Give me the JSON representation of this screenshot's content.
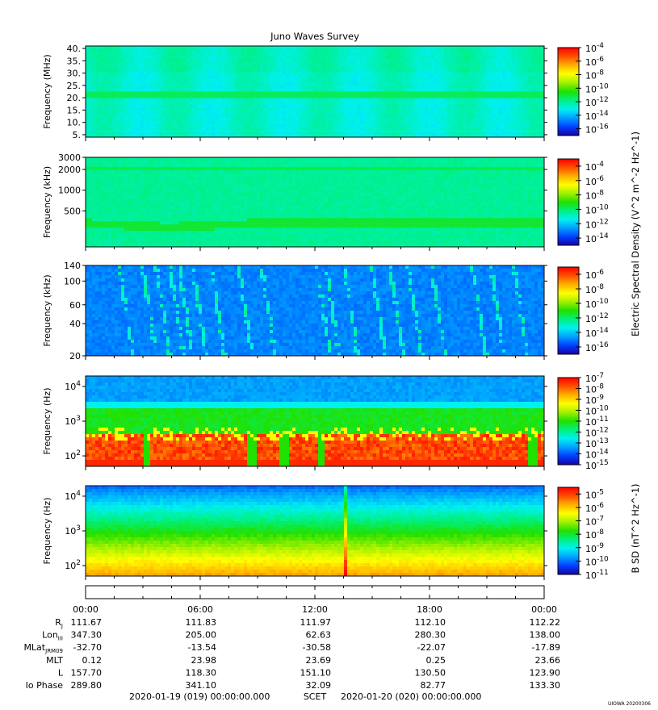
{
  "title": "Juno Waves Survey",
  "watermark": "UIOWA 20200306",
  "colorscale": [
    "#1a00a8",
    "#0040ff",
    "#00a0ff",
    "#00f0f0",
    "#00f080",
    "#20e000",
    "#a0f000",
    "#ffff00",
    "#ffb000",
    "#ff5000",
    "#ff0000"
  ],
  "chart_data": [
    {
      "type": "heatmap",
      "ylabel": "Frequency (MHz)",
      "yscale": "linear",
      "ylim": [
        4,
        41
      ],
      "yticks": [
        "5.",
        "10.",
        "15.",
        "20.",
        "25.",
        "30.",
        "35.",
        "40."
      ],
      "ytick_values": [
        5,
        10,
        15,
        20,
        25,
        30,
        35,
        40
      ],
      "colorbar_ticks": [
        "10^-4",
        "10^-6",
        "10^-8",
        "10^-10",
        "10^-12",
        "10^-14",
        "10^-16"
      ],
      "colorbar_exp": [
        -4,
        -6,
        -8,
        -10,
        -12,
        -14,
        -16
      ],
      "colorbar_range": [
        -17,
        -4
      ],
      "features": "uniform background ~1e-12 to 1e-13 V2 m-2 Hz-1; narrow band at ~21 MHz ~1e-11"
    },
    {
      "type": "heatmap",
      "ylabel": "Frequency (kHz)",
      "yscale": "log",
      "ylim": [
        150,
        3000
      ],
      "yticks": [
        "3000",
        "2000",
        "1000",
        "500"
      ],
      "ytick_values": [
        3000,
        2000,
        1000,
        500
      ],
      "colorbar_ticks": [
        "10^-4",
        "10^-6",
        "10^-8",
        "10^-10",
        "10^-12",
        "10^-14"
      ],
      "colorbar_exp": [
        -4,
        -6,
        -8,
        -10,
        -12,
        -14
      ],
      "colorbar_range": [
        -15,
        -3
      ],
      "colorbar_label": "Electric Spectral Density (V^2 m^-2 Hz^-1)",
      "features": "background ~1e-11; bands near 2000 kHz and ~350 kHz ~1e-10"
    },
    {
      "type": "heatmap",
      "ylabel": "Frequency (kHz)",
      "yscale": "log",
      "ylim": [
        20,
        140
      ],
      "yticks": [
        "140",
        "100",
        "60",
        "40",
        "20"
      ],
      "ytick_values": [
        140,
        100,
        60,
        40,
        20
      ],
      "colorbar_ticks": [
        "10^-6",
        "10^-8",
        "10^-10",
        "10^-12",
        "10^-14",
        "10^-16"
      ],
      "colorbar_exp": [
        -6,
        -8,
        -10,
        -12,
        -14,
        -16
      ],
      "colorbar_range": [
        -17,
        -5
      ],
      "features": "background ~1e-14 to 1e-15; sporadic drifting emission streaks ~1e-13"
    },
    {
      "type": "heatmap",
      "ylabel": "Frequency (Hz)",
      "yscale": "log",
      "ylim": [
        50,
        20000
      ],
      "yticks": [
        "10^4",
        "10^3",
        "10^2"
      ],
      "ytick_values": [
        10000,
        1000,
        100
      ],
      "colorbar_ticks": [
        "10^-7",
        "10^-8",
        "10^-9",
        "10^-10",
        "10^-11",
        "10^-12",
        "10^-13",
        "10^-14",
        "10^-15"
      ],
      "colorbar_exp": [
        -7,
        -8,
        -9,
        -10,
        -11,
        -12,
        -13,
        -14,
        -15
      ],
      "colorbar_range": [
        -15,
        -7
      ],
      "features": "intense emission below ~300 Hz ~1e-8 to 1e-7 with gaps; ~1e-11 up to ~3 kHz; ~1e-14 above 4 kHz"
    },
    {
      "type": "heatmap",
      "ylabel": "Frequency (Hz)",
      "yscale": "log",
      "ylim": [
        50,
        20000
      ],
      "yticks": [
        "10^4",
        "10^3",
        "10^2"
      ],
      "ytick_values": [
        10000,
        1000,
        100
      ],
      "colorbar_ticks": [
        "10^-5",
        "10^-6",
        "10^-7",
        "10^-8",
        "10^-9",
        "10^-10",
        "10^-11"
      ],
      "colorbar_exp": [
        -5,
        -6,
        -7,
        -8,
        -9,
        -10,
        -11
      ],
      "colorbar_range": [
        -11,
        -4.5
      ],
      "colorbar_label": "B SD (nT^2 Hz^-1)",
      "features": "magnetic spectral density ~1e-7 to 1e-6 below 200 Hz, decreasing to ~1e-10 above 5 kHz; vertical spike near 13:30"
    }
  ],
  "x_axis": {
    "ticks": [
      "00:00",
      "06:00",
      "12:00",
      "18:00",
      "00:00"
    ],
    "rows": [
      {
        "label": "R",
        "sub": "J",
        "values": [
          "111.67",
          "111.83",
          "111.97",
          "112.10",
          "112.22"
        ]
      },
      {
        "label": "Lon",
        "sub": "III",
        "values": [
          "347.30",
          "205.00",
          "62.63",
          "280.30",
          "138.00"
        ]
      },
      {
        "label": "MLat",
        "sub": "JRM09",
        "values": [
          "-32.70",
          "-13.54",
          "-30.58",
          "-22.07",
          "-17.89"
        ]
      },
      {
        "label": "MLT",
        "sub": "",
        "values": [
          "0.12",
          "23.98",
          "23.69",
          "0.25",
          "23.66"
        ]
      },
      {
        "label": "L",
        "sub": "",
        "values": [
          "157.70",
          "118.30",
          "151.10",
          "130.50",
          "123.90"
        ]
      },
      {
        "label": "Io Phase",
        "sub": "",
        "values": [
          "289.80",
          "341.10",
          "32.09",
          "82.77",
          "133.30"
        ]
      }
    ],
    "time_start": "2020-01-19 (019) 00:00:00.000",
    "time_label": "SCET",
    "time_end": "2020-01-20 (020) 00:00:00.000"
  }
}
